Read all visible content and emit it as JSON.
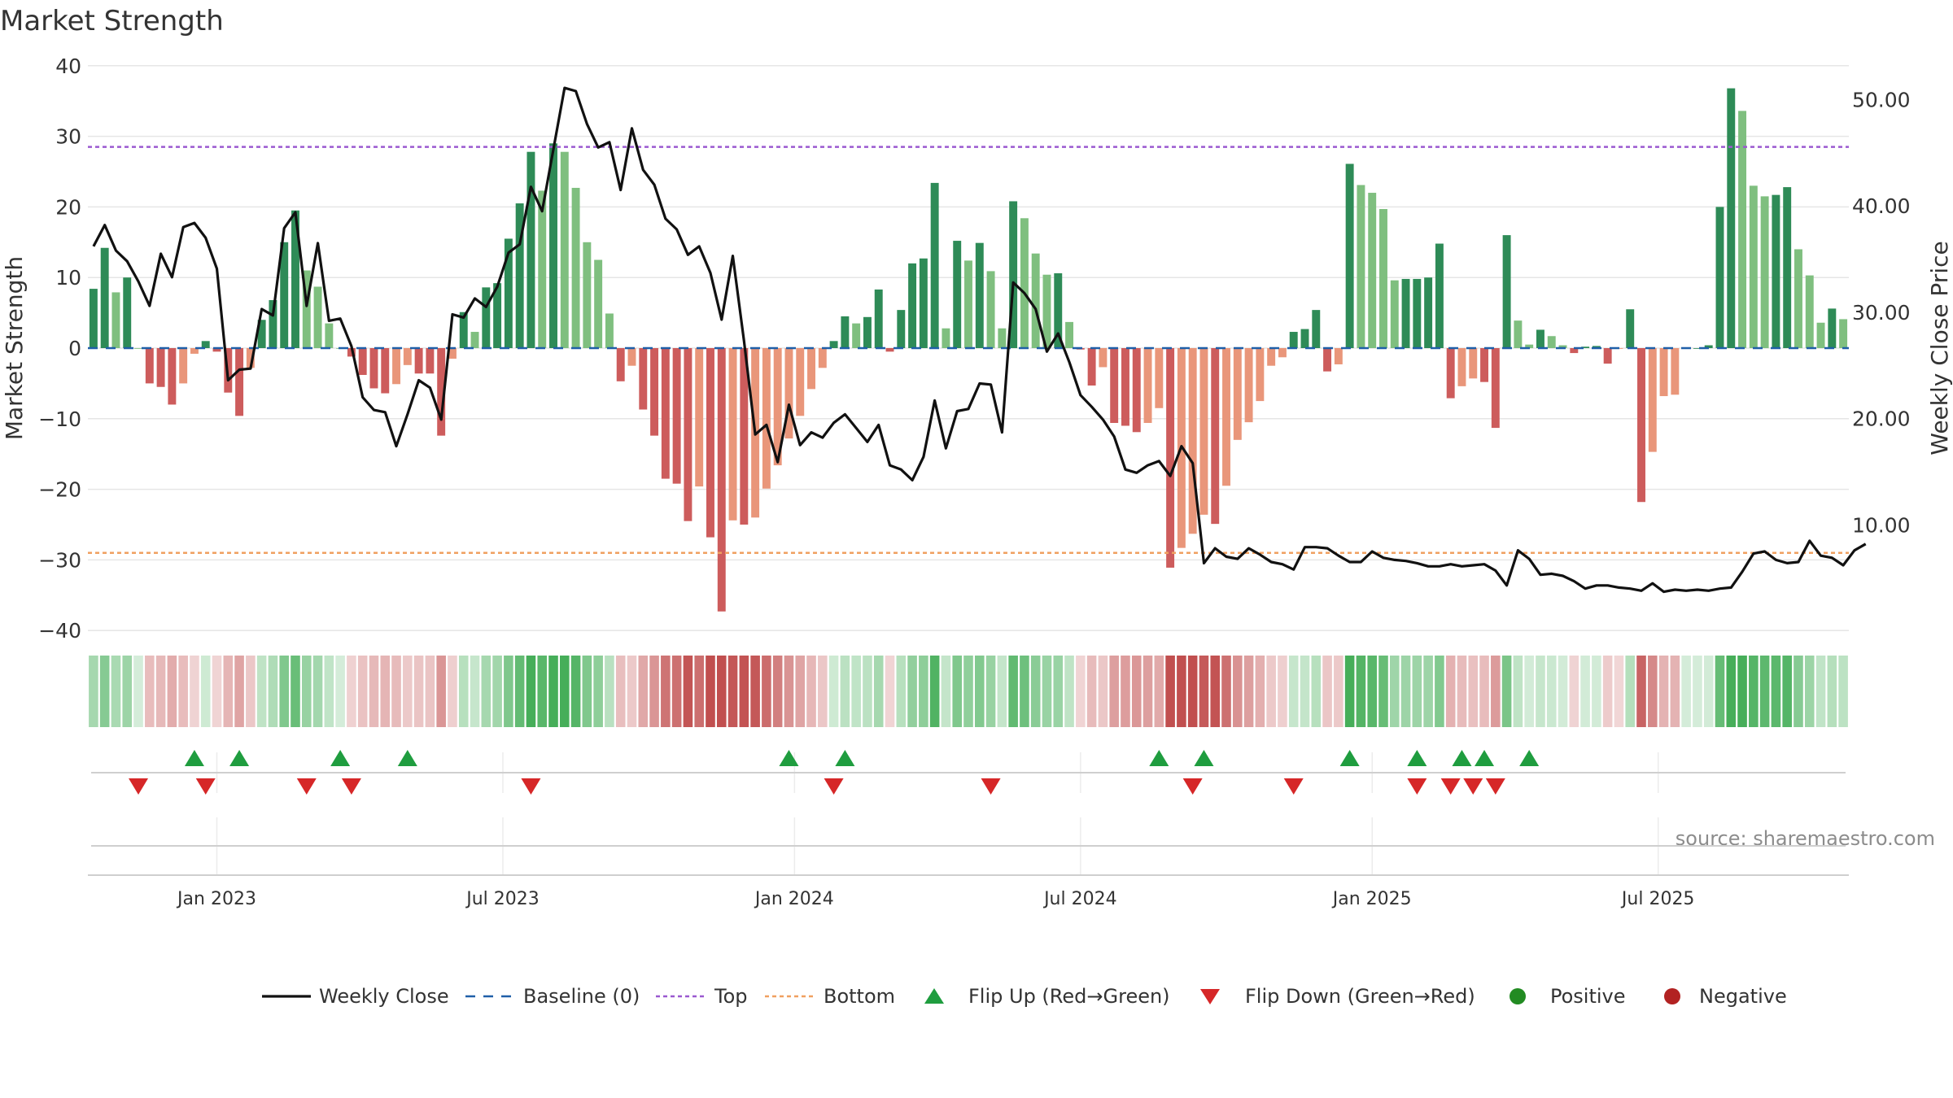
{
  "chart_data": {
    "type": "bar",
    "title": "Market Strength",
    "ylabel": "Market Strength",
    "y2label": "Weekly Close Price",
    "ylim": [
      -40,
      40
    ],
    "y2lim": [
      0,
      53
    ],
    "yticks": [
      "40",
      "30",
      "20",
      "10",
      "0",
      "−10",
      "−20",
      "−30",
      "−40"
    ],
    "yticks_values": [
      40,
      30,
      20,
      10,
      0,
      -10,
      -20,
      -30,
      -40
    ],
    "y2ticks": [
      "50.00",
      "40.00",
      "30.00",
      "20.00",
      "10.00"
    ],
    "y2ticks_values": [
      50,
      40,
      30,
      20,
      10
    ],
    "xticks": [
      "Jan 2023",
      "Jul 2023",
      "Jan 2024",
      "Jul 2024",
      "Jan 2025",
      "Jul 2025"
    ],
    "xticks_week": [
      11.5,
      37,
      63,
      88.5,
      114.5,
      140
    ],
    "top_line": 28.5,
    "bottom_line": -29,
    "strength_values": [
      8.4,
      14.2,
      7.9,
      10,
      0,
      -5,
      -5.5,
      -8,
      -5,
      -0.8,
      1,
      -0.5,
      -6.3,
      -9.6,
      -2.8,
      4,
      6.8,
      15,
      19.5,
      11,
      8.7,
      3.5,
      0,
      -1.2,
      -3.8,
      -5.7,
      -6.4,
      -5.1,
      -2.4,
      -3.6,
      -3.6,
      -12.4,
      -1.5,
      5.1,
      2.3,
      8.6,
      9.2,
      15.5,
      20.5,
      27.8,
      22.3,
      29,
      27.8,
      22.7,
      15,
      12.5,
      4.9,
      -4.7,
      -2.5,
      -8.7,
      -12.4,
      -18.5,
      -19.2,
      -24.5,
      -19.6,
      -26.8,
      -37.3,
      -24.4,
      -25,
      -24,
      -19.9,
      -16.6,
      -12.8,
      -9.6,
      -5.8,
      -2.8,
      1,
      4.5,
      3.5,
      4.4,
      8.3,
      -0.5,
      5.4,
      12,
      12.7,
      23.4,
      2.8,
      15.2,
      12.4,
      14.9,
      10.9,
      2.8,
      20.8,
      18.4,
      13.4,
      10.4,
      10.6,
      3.7,
      -0.2,
      -5.3,
      -2.7,
      -10.6,
      -11,
      -11.9,
      -10.6,
      -8.5,
      -31.1,
      -28.3,
      -26.3,
      -23.6,
      -24.9,
      -19.5,
      -13,
      -10.5,
      -7.5,
      -2.5,
      -1.3,
      2.3,
      2.7,
      5.4,
      -3.3,
      -2.3,
      26.1,
      23.1,
      22,
      19.7,
      9.6,
      9.8,
      9.8,
      10,
      14.8,
      -7.1,
      -5.4,
      -4.3,
      -4.8,
      -11.3,
      16,
      3.9,
      0.5,
      2.6,
      1.7,
      0.4,
      -0.7,
      0.2,
      0.3,
      -2.2,
      -0.1,
      5.5,
      -21.8,
      -14.7,
      -6.8,
      -6.6,
      0,
      0,
      0.4,
      20,
      36.8,
      33.6,
      23,
      21.5,
      21.7,
      22.8,
      14,
      10.3,
      3.6,
      5.6,
      4.1
    ],
    "close_values": [
      36.2,
      38.2,
      35.8,
      34.8,
      32.9,
      30.6,
      35.5,
      33.3,
      38,
      38.4,
      37,
      34.1,
      23.6,
      24.6,
      24.7,
      30.3,
      29.7,
      37.9,
      39.4,
      30.6,
      36.5,
      29.2,
      29.4,
      26.8,
      22,
      20.8,
      20.6,
      17.4,
      20.4,
      23.6,
      22.9,
      19.9,
      29.8,
      29.5,
      31.3,
      30.5,
      32.4,
      35.6,
      36.4,
      41.8,
      39.5,
      45.3,
      51.1,
      50.8,
      47.7,
      45.5,
      46,
      41.5,
      47.3,
      43.4,
      42,
      38.8,
      37.8,
      35.4,
      36.2,
      33.7,
      29.3,
      35.3,
      27.3,
      18.5,
      19.4,
      15.9,
      21.3,
      17.5,
      18.7,
      18.2,
      19.6,
      20.4,
      19.1,
      17.8,
      19.4,
      15.6,
      15.2,
      14.2,
      16.4,
      21.7,
      17.2,
      20.7,
      20.9,
      23.3,
      23.2,
      18.7,
      32.8,
      31.8,
      30.3,
      26.3,
      28,
      25.3,
      22.2,
      21.1,
      19.9,
      18.3,
      15.2,
      14.9,
      15.6,
      16,
      14.6,
      17.4,
      15.8,
      6.4,
      7.8,
      7,
      6.8,
      7.8,
      7.2,
      6.5,
      6.3,
      5.8,
      7.9,
      7.9,
      7.8,
      7.1,
      6.5,
      6.5,
      7.5,
      6.9,
      6.7,
      6.6,
      6.4,
      6.1,
      6.1,
      6.3,
      6.1,
      6.2,
      6.3,
      5.7,
      4.3,
      7.6,
      6.8,
      5.3,
      5.4,
      5.2,
      4.7,
      4,
      4.3,
      4.3,
      4.1,
      4,
      3.8,
      4.5,
      3.7,
      3.9,
      3.8,
      3.9,
      3.8,
      4,
      4.1,
      5.6,
      7.3,
      7.5,
      6.7,
      6.4,
      6.5,
      8.5,
      7.1,
      6.9,
      6.2,
      7.6,
      8.2
    ],
    "flip_up_weeks": [
      9,
      13,
      22,
      28,
      62,
      67,
      95,
      99,
      112,
      118,
      122,
      124,
      128
    ],
    "flip_down_weeks": [
      4,
      10,
      19,
      23,
      39,
      66,
      80,
      98,
      107,
      118,
      121,
      123,
      125
    ],
    "legend": [
      "Weekly Close",
      "Baseline (0)",
      "Top",
      "Bottom",
      "Flip Up (Red→Green)",
      "Flip Down (Green→Red)",
      "Positive",
      "Negative"
    ],
    "source": "source: sharemaestro.com"
  },
  "colors": {
    "pos_strong": "#2e8b57",
    "pos_weak": "#7fbf7f",
    "neg_strong": "#cd5c5c",
    "neg_weak": "#e9967a",
    "close": "#111111",
    "top": "#9b59d0",
    "bottom": "#f0a060",
    "baseline": "#1f5fa8",
    "flip_up": "#1f9d3f",
    "flip_down": "#d62728",
    "positive_dot": "#228b22",
    "negative_dot": "#b22222",
    "grid": "#e6e6e6"
  }
}
